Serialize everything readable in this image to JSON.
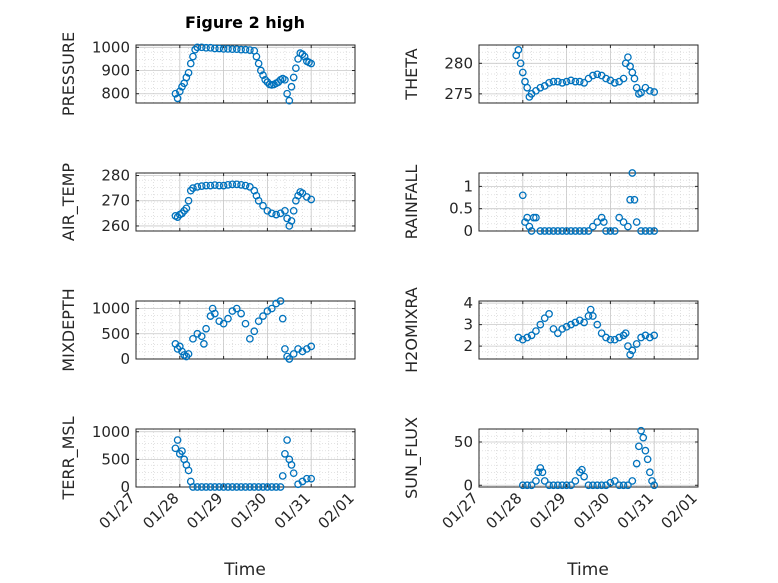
{
  "figure_title": "Figure 2 high",
  "x_axis_label": "Time",
  "marker_color": "#0072BD",
  "chart_data": [
    {
      "type": "scatter",
      "ylabel": "PRESSURE",
      "title": "Figure 2 high",
      "ylim": [
        760,
        1010
      ],
      "yticks": [
        "800",
        "900",
        "1000"
      ],
      "ytick_values": [
        800,
        900,
        1000
      ],
      "x": [
        "01/27",
        "01/28",
        "01/29",
        "01/30",
        "01/31",
        "02/01"
      ],
      "points": [
        [
          0.9,
          800
        ],
        [
          0.95,
          780
        ],
        [
          1.0,
          810
        ],
        [
          1.05,
          830
        ],
        [
          1.1,
          845
        ],
        [
          1.15,
          870
        ],
        [
          1.2,
          890
        ],
        [
          1.25,
          930
        ],
        [
          1.3,
          960
        ],
        [
          1.35,
          990
        ],
        [
          1.4,
          1000
        ],
        [
          1.5,
          1000
        ],
        [
          1.6,
          998
        ],
        [
          1.7,
          998
        ],
        [
          1.8,
          995
        ],
        [
          1.9,
          995
        ],
        [
          2.0,
          993
        ],
        [
          2.1,
          993
        ],
        [
          2.2,
          992
        ],
        [
          2.3,
          992
        ],
        [
          2.4,
          990
        ],
        [
          2.5,
          990
        ],
        [
          2.6,
          988
        ],
        [
          2.7,
          985
        ],
        [
          2.75,
          960
        ],
        [
          2.8,
          930
        ],
        [
          2.85,
          900
        ],
        [
          2.9,
          880
        ],
        [
          2.95,
          860
        ],
        [
          3.0,
          850
        ],
        [
          3.05,
          840
        ],
        [
          3.1,
          838
        ],
        [
          3.15,
          840
        ],
        [
          3.2,
          845
        ],
        [
          3.25,
          850
        ],
        [
          3.3,
          860
        ],
        [
          3.35,
          865
        ],
        [
          3.4,
          860
        ],
        [
          3.45,
          800
        ],
        [
          3.5,
          770
        ],
        [
          3.55,
          830
        ],
        [
          3.6,
          870
        ],
        [
          3.65,
          910
        ],
        [
          3.7,
          950
        ],
        [
          3.75,
          975
        ],
        [
          3.8,
          970
        ],
        [
          3.85,
          960
        ],
        [
          3.9,
          940
        ],
        [
          3.95,
          935
        ],
        [
          4.0,
          930
        ]
      ]
    },
    {
      "type": "scatter",
      "ylabel": "THETA",
      "ylim": [
        273.5,
        283
      ],
      "yticks": [
        "275",
        "280"
      ],
      "ytick_values": [
        275,
        280
      ],
      "x": [
        "01/27",
        "01/28",
        "01/29",
        "01/30",
        "01/31",
        "02/01"
      ],
      "points": [
        [
          0.85,
          281.3
        ],
        [
          0.9,
          282.2
        ],
        [
          0.95,
          280
        ],
        [
          1.0,
          278.5
        ],
        [
          1.05,
          277
        ],
        [
          1.1,
          276
        ],
        [
          1.15,
          274.5
        ],
        [
          1.2,
          275
        ],
        [
          1.3,
          275.5
        ],
        [
          1.4,
          276
        ],
        [
          1.5,
          276.3
        ],
        [
          1.6,
          276.8
        ],
        [
          1.7,
          277
        ],
        [
          1.8,
          277
        ],
        [
          1.9,
          276.8
        ],
        [
          2.0,
          277
        ],
        [
          2.1,
          277.2
        ],
        [
          2.2,
          277
        ],
        [
          2.3,
          277
        ],
        [
          2.4,
          276.8
        ],
        [
          2.5,
          277.5
        ],
        [
          2.6,
          278
        ],
        [
          2.7,
          278.2
        ],
        [
          2.8,
          278
        ],
        [
          2.9,
          277.5
        ],
        [
          3.0,
          277.2
        ],
        [
          3.1,
          276.8
        ],
        [
          3.2,
          277
        ],
        [
          3.3,
          277.5
        ],
        [
          3.35,
          280
        ],
        [
          3.4,
          281
        ],
        [
          3.45,
          279.5
        ],
        [
          3.5,
          278.5
        ],
        [
          3.55,
          277.5
        ],
        [
          3.6,
          276
        ],
        [
          3.65,
          275
        ],
        [
          3.7,
          275.2
        ],
        [
          3.8,
          276
        ],
        [
          3.9,
          275.5
        ],
        [
          4.0,
          275.3
        ]
      ]
    },
    {
      "type": "scatter",
      "ylabel": "AIR_TEMP",
      "ylim": [
        258,
        281
      ],
      "yticks": [
        "260",
        "270",
        "280"
      ],
      "ytick_values": [
        260,
        270,
        280
      ],
      "x": [
        "01/27",
        "01/28",
        "01/29",
        "01/30",
        "01/31",
        "02/01"
      ],
      "points": [
        [
          0.9,
          264
        ],
        [
          0.95,
          263.5
        ],
        [
          1.0,
          264.5
        ],
        [
          1.05,
          265
        ],
        [
          1.1,
          266
        ],
        [
          1.15,
          267
        ],
        [
          1.2,
          270
        ],
        [
          1.25,
          274
        ],
        [
          1.3,
          275
        ],
        [
          1.4,
          275.5
        ],
        [
          1.5,
          275.8
        ],
        [
          1.6,
          276
        ],
        [
          1.7,
          276
        ],
        [
          1.8,
          276.2
        ],
        [
          1.9,
          276
        ],
        [
          2.0,
          276
        ],
        [
          2.1,
          276.3
        ],
        [
          2.2,
          276.5
        ],
        [
          2.3,
          276.5
        ],
        [
          2.4,
          276.3
        ],
        [
          2.5,
          276
        ],
        [
          2.6,
          275.5
        ],
        [
          2.7,
          274
        ],
        [
          2.75,
          272
        ],
        [
          2.8,
          270
        ],
        [
          2.9,
          268
        ],
        [
          3.0,
          266
        ],
        [
          3.1,
          265
        ],
        [
          3.2,
          264.5
        ],
        [
          3.3,
          265
        ],
        [
          3.4,
          266
        ],
        [
          3.45,
          263
        ],
        [
          3.5,
          260
        ],
        [
          3.55,
          262
        ],
        [
          3.6,
          266
        ],
        [
          3.65,
          270
        ],
        [
          3.7,
          272
        ],
        [
          3.75,
          273.5
        ],
        [
          3.8,
          273
        ],
        [
          3.9,
          271.5
        ],
        [
          4.0,
          270.5
        ]
      ]
    },
    {
      "type": "scatter",
      "ylabel": "RAINFALL",
      "ylim": [
        0,
        1.3
      ],
      "yticks": [
        "0",
        "0.5",
        "1"
      ],
      "ytick_values": [
        0,
        0.5,
        1
      ],
      "x": [
        "01/27",
        "01/28",
        "01/29",
        "01/30",
        "01/31",
        "02/01"
      ],
      "points": [
        [
          1.0,
          0.8
        ],
        [
          1.05,
          0.2
        ],
        [
          1.1,
          0.3
        ],
        [
          1.15,
          0.1
        ],
        [
          1.2,
          0
        ],
        [
          1.25,
          0.3
        ],
        [
          1.3,
          0.3
        ],
        [
          1.4,
          0
        ],
        [
          1.5,
          0
        ],
        [
          1.6,
          0
        ],
        [
          1.7,
          0
        ],
        [
          1.8,
          0
        ],
        [
          1.9,
          0
        ],
        [
          2.0,
          0
        ],
        [
          2.1,
          0
        ],
        [
          2.2,
          0
        ],
        [
          2.3,
          0
        ],
        [
          2.4,
          0
        ],
        [
          2.5,
          0
        ],
        [
          2.6,
          0.1
        ],
        [
          2.7,
          0.2
        ],
        [
          2.8,
          0.3
        ],
        [
          2.85,
          0.2
        ],
        [
          2.9,
          0
        ],
        [
          3.0,
          0
        ],
        [
          3.1,
          0
        ],
        [
          3.2,
          0.3
        ],
        [
          3.3,
          0.2
        ],
        [
          3.4,
          0.1
        ],
        [
          3.45,
          0.7
        ],
        [
          3.5,
          1.3
        ],
        [
          3.55,
          0.7
        ],
        [
          3.6,
          0.2
        ],
        [
          3.7,
          0
        ],
        [
          3.8,
          0
        ],
        [
          3.9,
          0
        ],
        [
          4.0,
          0
        ]
      ]
    },
    {
      "type": "scatter",
      "ylabel": "MIXDEPTH",
      "ylim": [
        0,
        1150
      ],
      "yticks": [
        "0",
        "500",
        "1000"
      ],
      "ytick_values": [
        0,
        500,
        1000
      ],
      "x": [
        "01/27",
        "01/28",
        "01/29",
        "01/30",
        "01/31",
        "02/01"
      ],
      "points": [
        [
          0.9,
          300
        ],
        [
          0.95,
          200
        ],
        [
          1.0,
          250
        ],
        [
          1.05,
          150
        ],
        [
          1.1,
          80
        ],
        [
          1.15,
          50
        ],
        [
          1.2,
          100
        ],
        [
          1.3,
          400
        ],
        [
          1.4,
          500
        ],
        [
          1.5,
          450
        ],
        [
          1.55,
          300
        ],
        [
          1.6,
          600
        ],
        [
          1.7,
          850
        ],
        [
          1.75,
          1000
        ],
        [
          1.8,
          900
        ],
        [
          1.9,
          750
        ],
        [
          2.0,
          700
        ],
        [
          2.1,
          800
        ],
        [
          2.2,
          950
        ],
        [
          2.3,
          1000
        ],
        [
          2.4,
          900
        ],
        [
          2.5,
          700
        ],
        [
          2.6,
          400
        ],
        [
          2.7,
          550
        ],
        [
          2.8,
          750
        ],
        [
          2.9,
          850
        ],
        [
          3.0,
          950
        ],
        [
          3.1,
          1000
        ],
        [
          3.2,
          1100
        ],
        [
          3.3,
          1150
        ],
        [
          3.35,
          800
        ],
        [
          3.4,
          200
        ],
        [
          3.45,
          50
        ],
        [
          3.5,
          0
        ],
        [
          3.6,
          100
        ],
        [
          3.7,
          200
        ],
        [
          3.8,
          150
        ],
        [
          3.9,
          200
        ],
        [
          4.0,
          250
        ]
      ]
    },
    {
      "type": "scatter",
      "ylabel": "H2OMIXRA",
      "ylim": [
        1.4,
        4.1
      ],
      "yticks": [
        "2",
        "3",
        "4"
      ],
      "ytick_values": [
        2,
        3,
        4
      ],
      "x": [
        "01/27",
        "01/28",
        "01/29",
        "01/30",
        "01/31",
        "02/01"
      ],
      "points": [
        [
          0.9,
          2.4
        ],
        [
          1.0,
          2.3
        ],
        [
          1.1,
          2.4
        ],
        [
          1.2,
          2.5
        ],
        [
          1.3,
          2.7
        ],
        [
          1.4,
          3.0
        ],
        [
          1.5,
          3.3
        ],
        [
          1.6,
          3.5
        ],
        [
          1.7,
          2.8
        ],
        [
          1.8,
          2.6
        ],
        [
          1.9,
          2.8
        ],
        [
          2.0,
          2.9
        ],
        [
          2.1,
          3.0
        ],
        [
          2.2,
          3.1
        ],
        [
          2.3,
          3.2
        ],
        [
          2.4,
          3.1
        ],
        [
          2.5,
          3.4
        ],
        [
          2.55,
          3.7
        ],
        [
          2.6,
          3.4
        ],
        [
          2.7,
          3.0
        ],
        [
          2.8,
          2.6
        ],
        [
          2.9,
          2.4
        ],
        [
          3.0,
          2.3
        ],
        [
          3.1,
          2.3
        ],
        [
          3.2,
          2.4
        ],
        [
          3.3,
          2.5
        ],
        [
          3.35,
          2.6
        ],
        [
          3.4,
          2.0
        ],
        [
          3.45,
          1.6
        ],
        [
          3.5,
          1.8
        ],
        [
          3.6,
          2.1
        ],
        [
          3.7,
          2.4
        ],
        [
          3.8,
          2.5
        ],
        [
          3.9,
          2.4
        ],
        [
          4.0,
          2.5
        ]
      ]
    },
    {
      "type": "scatter",
      "ylabel": "TERR_MSL",
      "ylim": [
        0,
        1050
      ],
      "yticks": [
        "0",
        "500",
        "1000"
      ],
      "ytick_values": [
        0,
        500,
        1000
      ],
      "x": [
        "01/27",
        "01/28",
        "01/29",
        "01/30",
        "01/31",
        "02/01"
      ],
      "points": [
        [
          0.9,
          700
        ],
        [
          0.95,
          850
        ],
        [
          1.0,
          600
        ],
        [
          1.05,
          650
        ],
        [
          1.1,
          500
        ],
        [
          1.15,
          400
        ],
        [
          1.2,
          300
        ],
        [
          1.25,
          100
        ],
        [
          1.3,
          0
        ],
        [
          1.4,
          0
        ],
        [
          1.5,
          0
        ],
        [
          1.6,
          0
        ],
        [
          1.7,
          0
        ],
        [
          1.8,
          0
        ],
        [
          1.9,
          0
        ],
        [
          2.0,
          0
        ],
        [
          2.1,
          0
        ],
        [
          2.2,
          0
        ],
        [
          2.3,
          0
        ],
        [
          2.4,
          0
        ],
        [
          2.5,
          0
        ],
        [
          2.6,
          0
        ],
        [
          2.7,
          0
        ],
        [
          2.8,
          0
        ],
        [
          2.9,
          0
        ],
        [
          3.0,
          0
        ],
        [
          3.1,
          0
        ],
        [
          3.2,
          0
        ],
        [
          3.3,
          0
        ],
        [
          3.35,
          200
        ],
        [
          3.4,
          600
        ],
        [
          3.45,
          850
        ],
        [
          3.5,
          500
        ],
        [
          3.55,
          400
        ],
        [
          3.6,
          250
        ],
        [
          3.7,
          50
        ],
        [
          3.8,
          100
        ],
        [
          3.9,
          150
        ],
        [
          4.0,
          150
        ]
      ]
    },
    {
      "type": "scatter",
      "ylabel": "SUN_FLUX",
      "ylim": [
        -2,
        65
      ],
      "yticks": [
        "0",
        "50"
      ],
      "ytick_values": [
        0,
        50
      ],
      "x": [
        "01/27",
        "01/28",
        "01/29",
        "01/30",
        "01/31",
        "02/01"
      ],
      "points": [
        [
          1.0,
          0
        ],
        [
          1.1,
          0
        ],
        [
          1.2,
          0
        ],
        [
          1.3,
          5
        ],
        [
          1.35,
          15
        ],
        [
          1.4,
          20
        ],
        [
          1.45,
          15
        ],
        [
          1.5,
          5
        ],
        [
          1.6,
          0
        ],
        [
          1.7,
          0
        ],
        [
          1.8,
          0
        ],
        [
          1.9,
          0
        ],
        [
          2.0,
          0
        ],
        [
          2.1,
          0
        ],
        [
          2.2,
          5
        ],
        [
          2.3,
          15
        ],
        [
          2.35,
          18
        ],
        [
          2.4,
          10
        ],
        [
          2.5,
          0
        ],
        [
          2.6,
          0
        ],
        [
          2.7,
          0
        ],
        [
          2.8,
          0
        ],
        [
          2.9,
          0
        ],
        [
          3.0,
          3
        ],
        [
          3.1,
          5
        ],
        [
          3.2,
          0
        ],
        [
          3.3,
          0
        ],
        [
          3.4,
          0
        ],
        [
          3.5,
          5
        ],
        [
          3.6,
          25
        ],
        [
          3.65,
          45
        ],
        [
          3.7,
          63
        ],
        [
          3.75,
          55
        ],
        [
          3.8,
          40
        ],
        [
          3.85,
          30
        ],
        [
          3.9,
          15
        ],
        [
          3.95,
          5
        ],
        [
          4.0,
          0
        ]
      ]
    }
  ]
}
